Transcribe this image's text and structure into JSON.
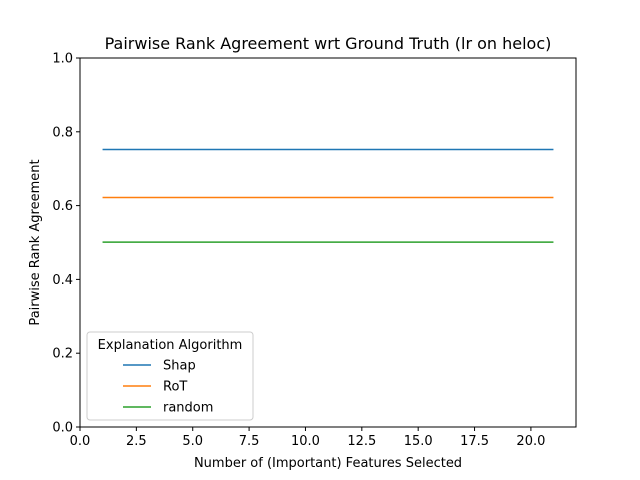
{
  "chart_data": {
    "type": "line",
    "title": "Pairwise Rank Agreement wrt Ground Truth (lr on heloc)",
    "xlabel": "Number of (Important) Features Selected",
    "ylabel": "Pairwise Rank Agreement",
    "xlim": [
      0,
      22
    ],
    "ylim": [
      0,
      1
    ],
    "xticks": [
      0,
      2.5,
      5,
      7.5,
      10,
      12.5,
      15,
      17.5,
      20
    ],
    "xtick_labels": [
      "0.0",
      "2.5",
      "5.0",
      "7.5",
      "10.0",
      "12.5",
      "15.0",
      "17.5",
      "20.0"
    ],
    "yticks": [
      0,
      0.2,
      0.4,
      0.6,
      0.8,
      1.0
    ],
    "ytick_labels": [
      "0.0",
      "0.2",
      "0.4",
      "0.6",
      "0.8",
      "1.0"
    ],
    "grid": false,
    "legend": {
      "title": "Explanation Algorithm",
      "placement": "lower-left"
    },
    "x": [
      1,
      2,
      3,
      4,
      5,
      6,
      7,
      8,
      9,
      10,
      11,
      12,
      13,
      14,
      15,
      16,
      17,
      18,
      19,
      20,
      21
    ],
    "series": [
      {
        "name": "Shap",
        "color": "#1f77b4",
        "values": [
          0.752,
          0.752,
          0.752,
          0.752,
          0.752,
          0.752,
          0.752,
          0.752,
          0.752,
          0.752,
          0.752,
          0.752,
          0.752,
          0.752,
          0.752,
          0.752,
          0.752,
          0.752,
          0.752,
          0.752,
          0.752
        ]
      },
      {
        "name": "RoT",
        "color": "#ff7f0e",
        "values": [
          0.622,
          0.622,
          0.622,
          0.622,
          0.622,
          0.622,
          0.622,
          0.622,
          0.622,
          0.622,
          0.622,
          0.622,
          0.622,
          0.622,
          0.622,
          0.622,
          0.622,
          0.622,
          0.622,
          0.622,
          0.622
        ]
      },
      {
        "name": "random",
        "color": "#2ca02c",
        "values": [
          0.501,
          0.501,
          0.501,
          0.501,
          0.501,
          0.501,
          0.501,
          0.501,
          0.501,
          0.501,
          0.501,
          0.501,
          0.501,
          0.501,
          0.501,
          0.501,
          0.501,
          0.501,
          0.501,
          0.501,
          0.501
        ]
      }
    ]
  }
}
